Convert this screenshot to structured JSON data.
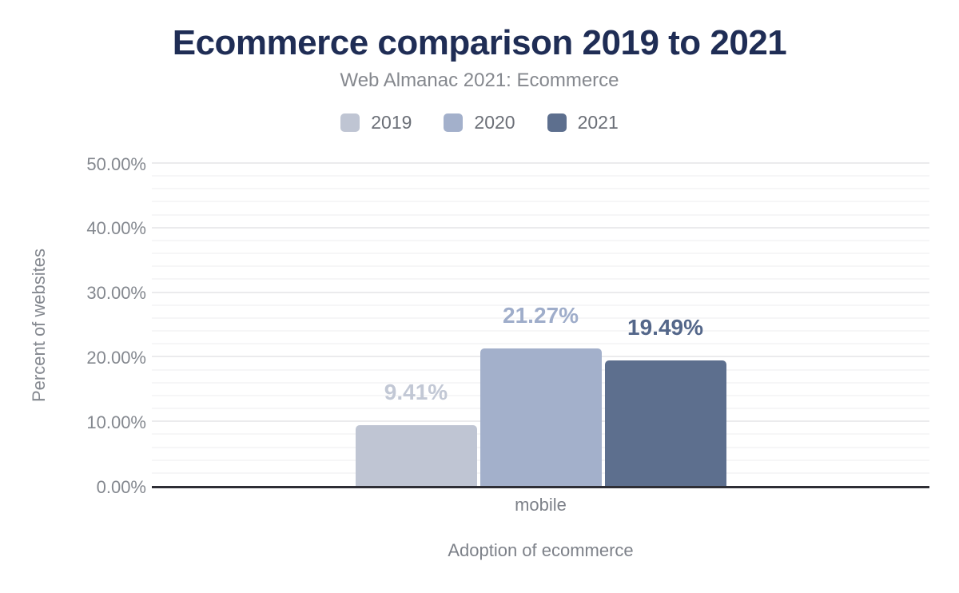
{
  "header": {
    "title": "Ecommerce comparison 2019 to 2021",
    "subtitle": "Web Almanac 2021: Ecommerce"
  },
  "legend": {
    "position": "top",
    "items": [
      {
        "label": "2019",
        "color": "#bfc5d3"
      },
      {
        "label": "2020",
        "color": "#a3b0cb"
      },
      {
        "label": "2021",
        "color": "#5d6f8e"
      }
    ]
  },
  "chart_data": {
    "type": "bar",
    "title": "Ecommerce comparison 2019 to 2021",
    "subtitle": "Web Almanac 2021: Ecommerce",
    "categories": [
      "mobile"
    ],
    "series": [
      {
        "name": "2019",
        "values": [
          9.41
        ],
        "color": "#bfc5d3",
        "label_color": "#c2c8d5",
        "data_label": "9.41%"
      },
      {
        "name": "2020",
        "values": [
          21.27
        ],
        "color": "#a3b0cb",
        "label_color": "#9fadca",
        "data_label": "21.27%"
      },
      {
        "name": "2021",
        "values": [
          19.49
        ],
        "color": "#5d6f8e",
        "label_color": "#54678a",
        "data_label": "19.49%"
      }
    ],
    "xlabel": "Adoption of ecommerce",
    "ylabel": "Percent of websites",
    "ylim": [
      0,
      50
    ],
    "ytick_values": [
      0,
      10,
      20,
      30,
      40,
      50
    ],
    "ytick_labels": [
      "0.00%",
      "10.00%",
      "20.00%",
      "30.00%",
      "40.00%",
      "50.00%"
    ],
    "grid": {
      "major_interval_pct": 10,
      "minor_interval_pct": 2,
      "major_color": "#ebebed",
      "minor_color": "#f6f6f7"
    },
    "axis_baseline_color": "#2e2e35",
    "legend_position": "top"
  }
}
